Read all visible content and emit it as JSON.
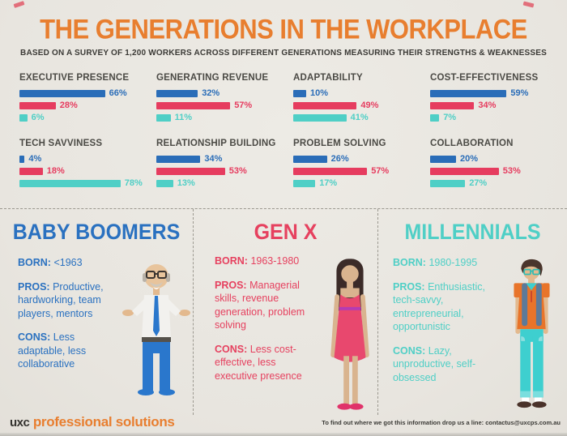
{
  "header": {
    "title": "THE GENERATIONS IN THE WORKPLACE",
    "subtitle": "BASED ON A SURVEY OF 1,200 WORKERS ACROSS DIFFERENT GENERATIONS MEASURING THEIR STRENGTHS & WEAKNESSES"
  },
  "colors": {
    "background": "#EAE7E1",
    "accent_orange": "#E87E2F",
    "boomers_blue": "#2A71C0",
    "genx_red": "#E6415F",
    "millennials_teal": "#4FCFC6",
    "chart_title_gray": "#4B4A45"
  },
  "chart_data": {
    "type": "bar",
    "orientation": "horizontal",
    "unit": "%",
    "xlim": [
      0,
      100
    ],
    "grid": false,
    "legend": "none (series color-coded to generation sections: blue=Baby Boomers, red=Gen X, teal=Millennials)",
    "categories": [
      "EXECUTIVE PRESENCE",
      "GENERATING REVENUE",
      "ADAPTABILITY",
      "COST-EFFECTIVENESS",
      "TECH SAVVINESS",
      "RELATIONSHIP BUILDING",
      "PROBLEM SOLVING",
      "COLLABORATION"
    ],
    "series": [
      {
        "name": "Baby Boomers",
        "color": "#2A6DB8",
        "values": [
          66,
          32,
          10,
          59,
          4,
          34,
          26,
          20
        ]
      },
      {
        "name": "Gen X",
        "color": "#E63C5F",
        "values": [
          28,
          57,
          49,
          34,
          18,
          53,
          57,
          53
        ]
      },
      {
        "name": "Millennials",
        "color": "#4FCFC6",
        "values": [
          6,
          11,
          41,
          7,
          78,
          13,
          17,
          27
        ]
      }
    ]
  },
  "generations": [
    {
      "title": "BABY BOOMERS",
      "born_label": "BORN:",
      "born": "<1963",
      "pros_label": "PROS:",
      "pros": "Productive, hardworking, team players, mentors",
      "cons_label": "CONS:",
      "cons": "Less adaptable, less collaborative",
      "figure": "older-man-glasses-tie"
    },
    {
      "title": "GEN X",
      "born_label": "BORN:",
      "born": "1963-1980",
      "pros_label": "PROS:",
      "pros": "Managerial skills, revenue generation, problem solving",
      "cons_label": "CONS:",
      "cons": "Less cost-effective, less executive presence",
      "figure": "woman-pink-dress"
    },
    {
      "title": "MILLENNIALS",
      "born_label": "BORN:",
      "born": "1980-1995",
      "pros_label": "PROS:",
      "pros": "Enthusiastic, tech-savvy, entrepreneurial, opportunistic",
      "cons_label": "CONS:",
      "cons": "Lazy, unproductive, self-obsessed",
      "figure": "young-man-backpack"
    }
  ],
  "footer": {
    "logo_prefix": "uxc",
    "logo_suffix": "professional solutions",
    "contact": "To find out where we got this information drop us a line: contactus@uxcps.com.au"
  }
}
